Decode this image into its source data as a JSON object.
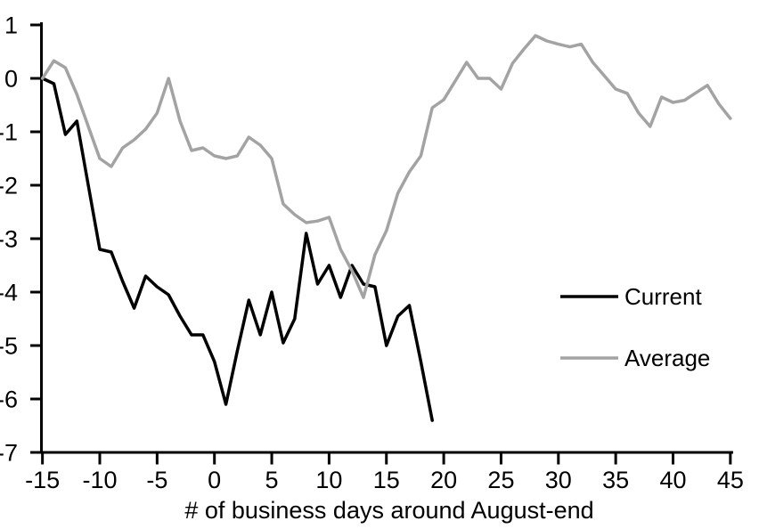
{
  "chart_data": {
    "type": "line",
    "title": "",
    "xlabel": "# of business days around August-end",
    "ylabel": "",
    "grid": false,
    "legend_position": "middle-right",
    "xlim": [
      -15.3,
      45.5
    ],
    "ylim": [
      -7,
      1
    ],
    "x_ticks": [
      -15,
      -10,
      -5,
      0,
      5,
      10,
      15,
      20,
      25,
      30,
      35,
      40,
      45
    ],
    "y_ticks": [
      1,
      0,
      -1,
      -2,
      -3,
      -4,
      -5,
      -6,
      -7
    ],
    "axis_color": "#000000",
    "series": [
      {
        "name": "Current",
        "color": "#000000",
        "x": [
          -15,
          -14,
          -13,
          -12,
          -11,
          -10,
          -9,
          -8,
          -7,
          -6,
          -5,
          -4,
          -3,
          -2,
          -1,
          0,
          1,
          2,
          3,
          4,
          5,
          6,
          7,
          8,
          9,
          10,
          11,
          12,
          13,
          14,
          15,
          16,
          17,
          18,
          19
        ],
        "values": [
          0,
          -0.1,
          -1.05,
          -0.8,
          -2.0,
          -3.2,
          -3.25,
          -3.8,
          -4.3,
          -3.7,
          -3.9,
          -4.05,
          -4.45,
          -4.8,
          -4.8,
          -5.3,
          -6.1,
          -5.1,
          -4.15,
          -4.8,
          -4.0,
          -4.95,
          -4.5,
          -2.9,
          -3.85,
          -3.5,
          -4.1,
          -3.5,
          -3.85,
          -3.9,
          -5.0,
          -4.45,
          -4.25,
          -5.3,
          -6.4
        ]
      },
      {
        "name": "Average",
        "color": "#a3a3a3",
        "x": [
          -15,
          -14,
          -13,
          -12,
          -11,
          -10,
          -9,
          -8,
          -7,
          -6,
          -5,
          -4,
          -3,
          -2,
          -1,
          0,
          1,
          2,
          3,
          4,
          5,
          6,
          7,
          8,
          9,
          10,
          11,
          12,
          13,
          14,
          15,
          16,
          17,
          18,
          19,
          20,
          21,
          22,
          23,
          24,
          25,
          26,
          27,
          28,
          29,
          30,
          31,
          32,
          33,
          34,
          35,
          36,
          37,
          38,
          39,
          40,
          41,
          42,
          43,
          44,
          45
        ],
        "values": [
          0,
          0.33,
          0.2,
          -0.3,
          -0.9,
          -1.5,
          -1.65,
          -1.3,
          -1.15,
          -0.95,
          -0.65,
          0.0,
          -0.8,
          -1.35,
          -1.3,
          -1.45,
          -1.5,
          -1.45,
          -1.1,
          -1.25,
          -1.5,
          -2.35,
          -2.55,
          -2.7,
          -2.67,
          -2.6,
          -3.2,
          -3.6,
          -4.1,
          -3.3,
          -2.85,
          -2.15,
          -1.75,
          -1.45,
          -0.55,
          -0.4,
          -0.05,
          0.3,
          0.0,
          0.0,
          -0.2,
          0.28,
          0.55,
          0.8,
          0.7,
          0.64,
          0.59,
          0.64,
          0.3,
          0.05,
          -0.2,
          -0.28,
          -0.65,
          -0.9,
          -0.35,
          -0.45,
          -0.41,
          -0.27,
          -0.13,
          -0.48,
          -0.75
        ]
      }
    ]
  }
}
